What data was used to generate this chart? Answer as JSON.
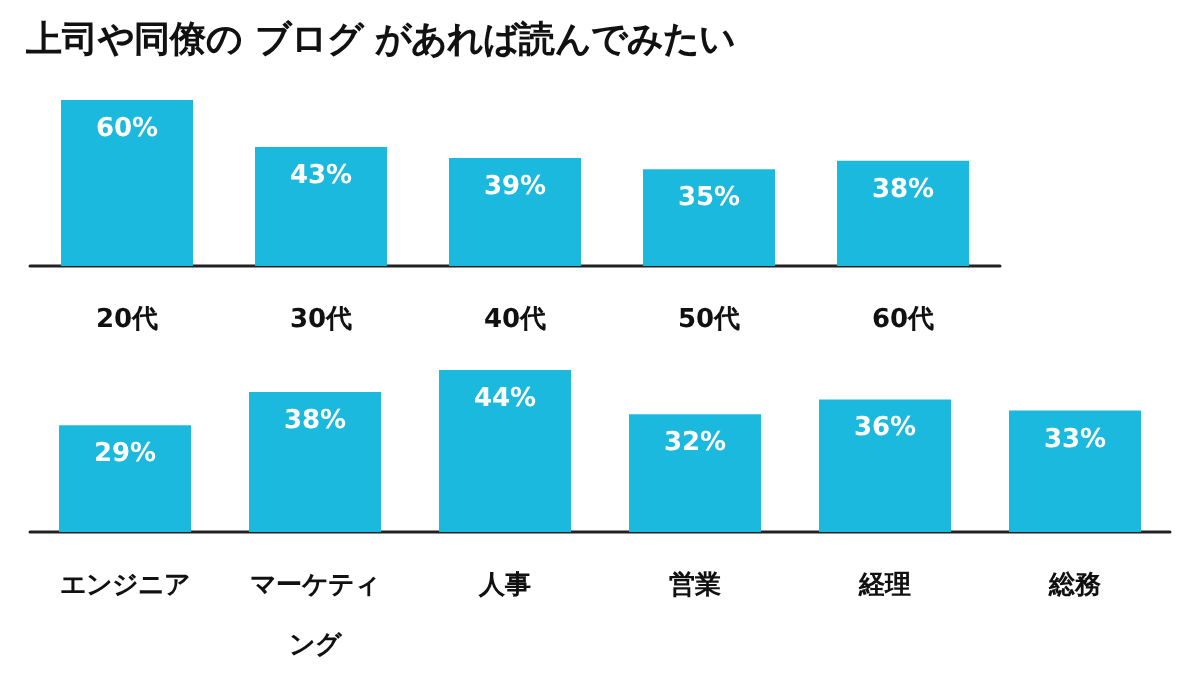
{
  "chart_data": [
    {
      "type": "bar",
      "title": "上司や同僚の ブログ があれば読んでみたい",
      "categories": [
        "20代",
        "30代",
        "40代",
        "50代",
        "60代"
      ],
      "tick_labels": "x",
      "series": [
        {
          "color": "#1cb9de",
          "values": [
            60,
            43,
            39,
            35,
            38
          ],
          "value_labels": [
            "60%",
            "43%",
            "39%",
            "35%",
            "38%"
          ]
        }
      ]
    },
    {
      "type": "bar",
      "categories": [
        "エンジニア",
        "マーケティング",
        "人事",
        "営業",
        "経理",
        "総務"
      ],
      "tick_labels": "x",
      "series": [
        {
          "color": "#1cb9de",
          "values": [
            29,
            38,
            44,
            32,
            36,
            33
          ],
          "value_labels": [
            "29%",
            "38%",
            "44%",
            "32%",
            "36%",
            "33%"
          ]
        }
      ]
    }
  ]
}
